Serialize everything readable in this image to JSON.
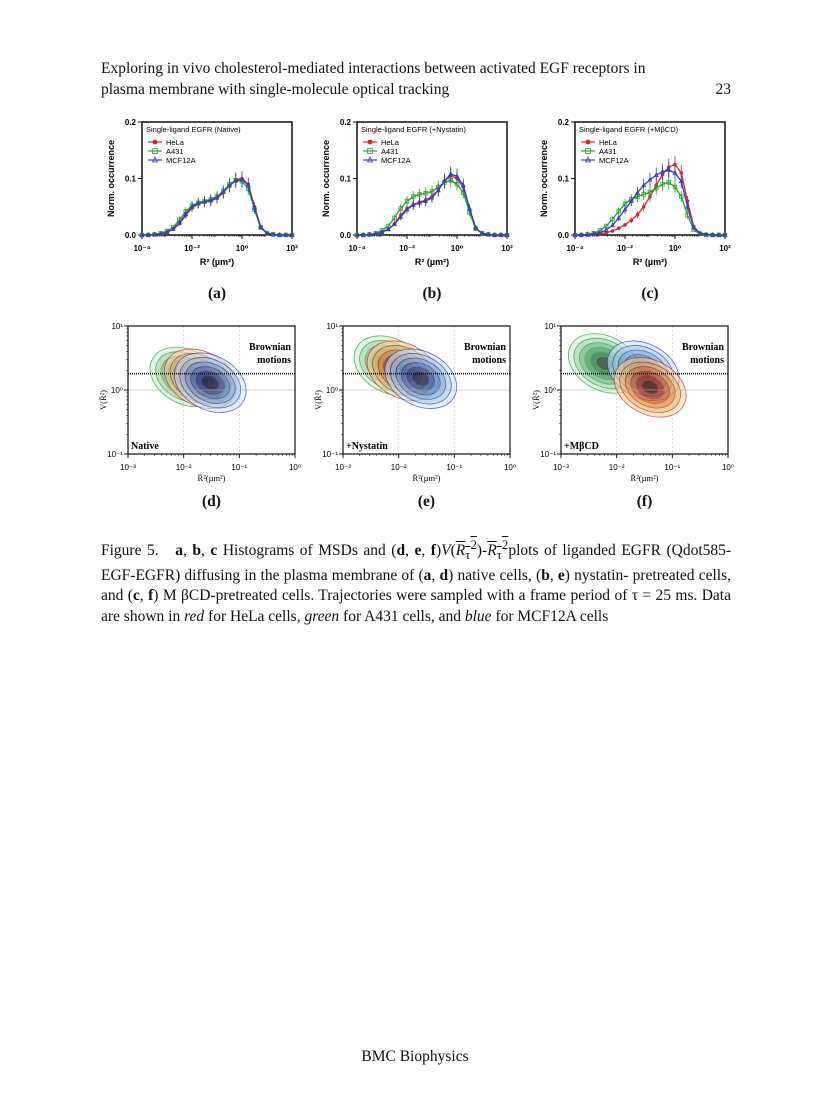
{
  "header": {
    "line1": "Exploring in vivo cholesterol-mediated interactions between activated EGF receptors in",
    "line2": "plasma membrane with single-molecule optical tracking",
    "page_number": "23"
  },
  "colors": {
    "HeLa": "#d62728",
    "A431": "#2ca02c",
    "MCF12A": "#3040c0"
  },
  "chart_data": [
    {
      "type": "line",
      "panel": "(a)",
      "legend_title": "Single-ligand EGFR (Native)",
      "xlabel": "R² (µm²)",
      "ylabel": "Norm. occurrence",
      "x_scale": "log",
      "xlim": [
        0.0001,
        100
      ],
      "ylim": [
        0,
        0.2
      ],
      "x_ticks": [
        "10⁻⁴",
        "10⁻²",
        "10⁰",
        "10²"
      ],
      "y_ticks": [
        "0.0",
        "0.1",
        "0.2"
      ],
      "x": [
        0.0001,
        0.000178,
        0.000316,
        0.000562,
        0.001,
        0.00178,
        0.00316,
        0.00562,
        0.01,
        0.0178,
        0.0316,
        0.0562,
        0.1,
        0.178,
        0.316,
        0.562,
        1,
        1.78,
        3.16,
        5.62,
        10,
        17.8,
        31.6,
        56.2,
        100
      ],
      "series": [
        {
          "name": "HeLa",
          "values": [
            0.0,
            0.0,
            0.001,
            0.002,
            0.005,
            0.01,
            0.02,
            0.035,
            0.048,
            0.055,
            0.058,
            0.06,
            0.065,
            0.075,
            0.088,
            0.098,
            0.1,
            0.09,
            0.05,
            0.015,
            0.003,
            0.001,
            0.0,
            0.0,
            0.0
          ]
        },
        {
          "name": "A431",
          "values": [
            0.0,
            0.0,
            0.001,
            0.003,
            0.007,
            0.014,
            0.027,
            0.042,
            0.052,
            0.057,
            0.06,
            0.063,
            0.068,
            0.078,
            0.09,
            0.097,
            0.095,
            0.082,
            0.045,
            0.013,
            0.003,
            0.001,
            0.0,
            0.0,
            0.0
          ]
        },
        {
          "name": "MCF12A",
          "values": [
            0.0,
            0.0,
            0.001,
            0.002,
            0.005,
            0.011,
            0.022,
            0.037,
            0.05,
            0.056,
            0.059,
            0.061,
            0.066,
            0.076,
            0.087,
            0.096,
            0.098,
            0.088,
            0.048,
            0.014,
            0.003,
            0.001,
            0.0,
            0.0,
            0.0
          ]
        }
      ]
    },
    {
      "type": "line",
      "panel": "(b)",
      "legend_title": "Single-ligand EGFR (+Nystatin)",
      "xlabel": "R² (µm²)",
      "ylabel": "Norm. occurrence",
      "x_scale": "log",
      "xlim": [
        0.0001,
        100
      ],
      "ylim": [
        0,
        0.2
      ],
      "x_ticks": [
        "10⁻⁴",
        "10⁻²",
        "10⁰",
        "10²"
      ],
      "y_ticks": [
        "0.0",
        "0.1",
        "0.2"
      ],
      "x": [
        0.0001,
        0.000178,
        0.000316,
        0.000562,
        0.001,
        0.00178,
        0.00316,
        0.00562,
        0.01,
        0.0178,
        0.0316,
        0.0562,
        0.1,
        0.178,
        0.316,
        0.562,
        1,
        1.78,
        3.16,
        5.62,
        10,
        17.8,
        31.6,
        56.2,
        100
      ],
      "series": [
        {
          "name": "HeLa",
          "values": [
            0.0,
            0.0,
            0.001,
            0.002,
            0.005,
            0.01,
            0.02,
            0.035,
            0.047,
            0.054,
            0.058,
            0.062,
            0.068,
            0.08,
            0.095,
            0.105,
            0.1,
            0.085,
            0.045,
            0.012,
            0.003,
            0.001,
            0.0,
            0.0,
            0.0
          ]
        },
        {
          "name": "A431",
          "values": [
            0.0,
            0.0,
            0.001,
            0.003,
            0.008,
            0.016,
            0.03,
            0.047,
            0.06,
            0.068,
            0.072,
            0.074,
            0.077,
            0.085,
            0.093,
            0.097,
            0.09,
            0.075,
            0.04,
            0.011,
            0.003,
            0.001,
            0.0,
            0.0,
            0.0
          ]
        },
        {
          "name": "MCF12A",
          "values": [
            0.0,
            0.0,
            0.001,
            0.002,
            0.005,
            0.01,
            0.019,
            0.032,
            0.045,
            0.053,
            0.057,
            0.06,
            0.066,
            0.079,
            0.096,
            0.108,
            0.104,
            0.088,
            0.047,
            0.013,
            0.003,
            0.001,
            0.0,
            0.0,
            0.0
          ]
        }
      ]
    },
    {
      "type": "line",
      "panel": "(c)",
      "legend_title": "Single-ligand EGFR (+MβCD)",
      "xlabel": "R² (µm²)",
      "ylabel": "Norm. occurrence",
      "x_scale": "log",
      "xlim": [
        0.0001,
        100
      ],
      "ylim": [
        0,
        0.2
      ],
      "x_ticks": [
        "10⁻⁴",
        "10⁻²",
        "10⁰",
        "10²"
      ],
      "y_ticks": [
        "0.0",
        "0.1",
        "0.2"
      ],
      "x": [
        0.0001,
        0.000178,
        0.000316,
        0.000562,
        0.001,
        0.00178,
        0.00316,
        0.00562,
        0.01,
        0.0178,
        0.0316,
        0.0562,
        0.1,
        0.178,
        0.316,
        0.562,
        1,
        1.78,
        3.16,
        5.62,
        10,
        17.8,
        31.6,
        56.2,
        100
      ],
      "series": [
        {
          "name": "HeLa",
          "values": [
            0.0,
            0.0,
            0.0,
            0.001,
            0.002,
            0.004,
            0.007,
            0.012,
            0.018,
            0.026,
            0.036,
            0.05,
            0.068,
            0.088,
            0.107,
            0.12,
            0.125,
            0.11,
            0.06,
            0.015,
            0.003,
            0.001,
            0.0,
            0.0,
            0.0
          ]
        },
        {
          "name": "A431",
          "values": [
            0.0,
            0.0,
            0.001,
            0.003,
            0.008,
            0.016,
            0.028,
            0.042,
            0.055,
            0.063,
            0.068,
            0.072,
            0.076,
            0.083,
            0.09,
            0.093,
            0.085,
            0.068,
            0.035,
            0.009,
            0.002,
            0.0,
            0.0,
            0.0,
            0.0
          ]
        },
        {
          "name": "MCF12A",
          "values": [
            0.0,
            0.0,
            0.001,
            0.002,
            0.004,
            0.009,
            0.017,
            0.03,
            0.045,
            0.06,
            0.075,
            0.088,
            0.098,
            0.106,
            0.112,
            0.115,
            0.11,
            0.095,
            0.05,
            0.013,
            0.003,
            0.001,
            0.0,
            0.0,
            0.0
          ]
        }
      ]
    },
    {
      "type": "heatmap",
      "panel": "(d)",
      "annotation": "Native",
      "brownian_label": [
        "Brownian",
        "motions"
      ],
      "xlabel": "R̄²(µm²)",
      "ylabel": "V(R̄²)",
      "x_scale": "log",
      "y_scale": "log",
      "xlim": [
        0.001,
        1
      ],
      "ylim": [
        0.1,
        10
      ],
      "x_ticks": [
        "10⁻³",
        "10⁻²",
        "10⁻¹",
        "10⁰"
      ],
      "y_ticks": [
        "10⁻¹",
        "10⁰",
        "10¹"
      ],
      "brownian_line_y": 1.8,
      "contours": [
        {
          "name": "A431",
          "center": [
            0.011,
            1.6
          ]
        },
        {
          "name": "HeLa",
          "center": [
            0.02,
            1.5
          ]
        },
        {
          "name": "MCF12A",
          "center": [
            0.03,
            1.3
          ]
        }
      ]
    },
    {
      "type": "heatmap",
      "panel": "(e)",
      "annotation": "+Nystatin",
      "brownian_label": [
        "Brownian",
        "motions"
      ],
      "xlabel": "R̄²(µm²)",
      "ylabel": "V(R̄²)",
      "x_scale": "log",
      "y_scale": "log",
      "xlim": [
        0.001,
        1
      ],
      "ylim": [
        0.1,
        10
      ],
      "x_ticks": [
        "10⁻³",
        "10⁻²",
        "10⁻¹",
        "10⁰"
      ],
      "y_ticks": [
        "10⁻¹",
        "10⁰",
        "10¹"
      ],
      "brownian_line_y": 1.8,
      "contours": [
        {
          "name": "A431",
          "center": [
            0.007,
            2.4
          ]
        },
        {
          "name": "HeLa",
          "center": [
            0.012,
            2.0
          ]
        },
        {
          "name": "MCF12A",
          "center": [
            0.025,
            1.5
          ]
        }
      ]
    },
    {
      "type": "heatmap",
      "panel": "(f)",
      "annotation": "+MβCD",
      "brownian_label": [
        "Brownian",
        "motions"
      ],
      "xlabel": "R̄²(µm²)",
      "ylabel": "V(R̄²)",
      "x_scale": "log",
      "y_scale": "log",
      "xlim": [
        0.001,
        1
      ],
      "ylim": [
        0.1,
        10
      ],
      "x_ticks": [
        "10⁻³",
        "10⁻²",
        "10⁻¹",
        "10⁰"
      ],
      "y_ticks": [
        "10⁻¹",
        "10⁰",
        "10¹"
      ],
      "brownian_line_y": 1.8,
      "contours": [
        {
          "name": "A431",
          "center": [
            0.006,
            2.6
          ]
        },
        {
          "name": "MCF12A",
          "center": [
            0.03,
            2.0
          ]
        },
        {
          "name": "HeLa",
          "center": [
            0.04,
            1.1
          ]
        }
      ]
    }
  ],
  "caption": {
    "line1_prefix": "Figure 5.",
    "line1_a": "a",
    "line1_b": "b",
    "line1_c": "c",
    "line1_mid": "Histograms of MSDs and (",
    "line1_d": "d",
    "line1_e": "e",
    "line1_f": "f",
    "line1_end": "plots of liganded EGFR",
    "line2": "(Qdot585-EGF-EGFR) diffusing in the plasma membrane of (",
    "line2_a": "a",
    "line2_d": "d",
    "line2_mid": ") native cells, (",
    "line2_b": "b",
    "line2_e": "e",
    "line2_end": ") nystatin-",
    "line3_start": "pretreated cells, and (",
    "line3_c": "c",
    "line3_f": "f",
    "line3_end": ") M βCD-pretreated cells.  Trajectories were sampled with a frame",
    "line4_start": "period of τ = 25 ms.  Data are shown in ",
    "line4_red": "red",
    "line4_mid1": " for HeLa cells, ",
    "line4_green": "green",
    "line4_mid2": " for A431 cells, and ",
    "line4_blue": "blue",
    "line4_end": " for",
    "line5": "MCF12A cells"
  },
  "footer": {
    "journal": "BMC Biophysics"
  }
}
